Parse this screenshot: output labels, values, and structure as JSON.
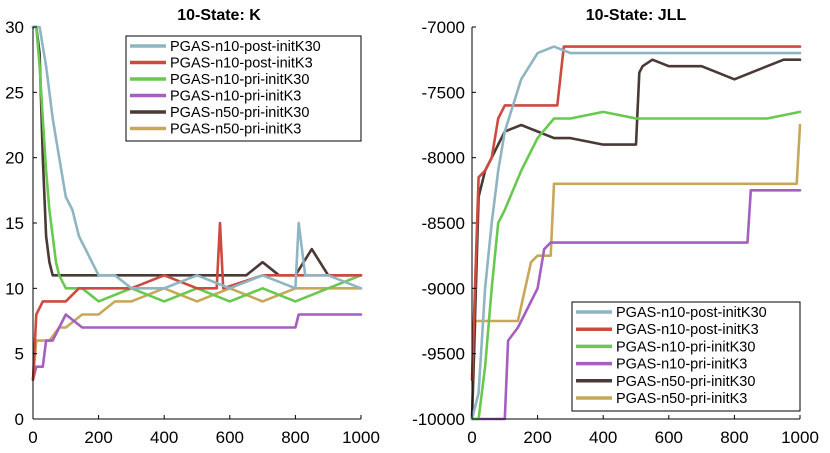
{
  "chart_data": [
    {
      "type": "line",
      "title": "10-State: K",
      "xlabel": "",
      "ylabel": "",
      "xlim": [
        0,
        1000
      ],
      "ylim": [
        0,
        30
      ],
      "xticks": [
        0,
        200,
        400,
        600,
        800,
        1000
      ],
      "yticks": [
        0,
        5,
        10,
        15,
        20,
        25,
        30
      ],
      "xtick_labels": [
        "0",
        "200",
        "400",
        "600",
        "800",
        "1000"
      ],
      "ytick_labels": [
        "0",
        "5",
        "10",
        "15",
        "20",
        "25",
        "30"
      ],
      "legend_position": "top-right",
      "series": [
        {
          "name": "PGAS-n10-post-initK30",
          "color": "#8fb5c3",
          "x": [
            0,
            20,
            40,
            60,
            80,
            100,
            120,
            140,
            160,
            180,
            200,
            250,
            300,
            400,
            500,
            600,
            700,
            800,
            810,
            830,
            900,
            1000
          ],
          "y": [
            30,
            30,
            27,
            23,
            20,
            17,
            16,
            14,
            13,
            12,
            11,
            11,
            10,
            10,
            11,
            10,
            11,
            10,
            15,
            11,
            11,
            10
          ]
        },
        {
          "name": "PGAS-n10-post-initK3",
          "color": "#cc4a3f",
          "x": [
            0,
            10,
            30,
            60,
            100,
            140,
            200,
            300,
            400,
            500,
            560,
            570,
            580,
            700,
            800,
            900,
            1000
          ],
          "y": [
            3,
            8,
            9,
            9,
            9,
            10,
            10,
            10,
            11,
            10,
            10,
            15,
            10,
            11,
            11,
            11,
            11
          ]
        },
        {
          "name": "PGAS-n10-pri-initK30",
          "color": "#69c84f",
          "x": [
            0,
            10,
            20,
            30,
            40,
            50,
            60,
            70,
            80,
            100,
            150,
            200,
            300,
            400,
            500,
            600,
            700,
            800,
            900,
            1000
          ],
          "y": [
            30,
            30,
            27,
            23,
            19,
            16,
            14,
            12,
            11,
            10,
            10,
            9,
            10,
            9,
            10,
            9,
            10,
            9,
            10,
            11
          ]
        },
        {
          "name": "PGAS-n10-pri-initK3",
          "color": "#a45fc0",
          "x": [
            0,
            10,
            30,
            40,
            60,
            80,
            100,
            150,
            200,
            300,
            400,
            500,
            600,
            700,
            800,
            810,
            900,
            1000
          ],
          "y": [
            3,
            4,
            4,
            6,
            6,
            7,
            8,
            7,
            7,
            7,
            7,
            7,
            7,
            7,
            7,
            8,
            8,
            8
          ]
        },
        {
          "name": "PGAS-n50-pri-initK30",
          "color": "#4a3a36",
          "x": [
            0,
            10,
            20,
            30,
            40,
            50,
            60,
            80,
            100,
            150,
            200,
            250,
            300,
            350,
            400,
            450,
            500,
            550,
            600,
            650,
            700,
            750,
            800,
            850,
            900,
            950,
            1000
          ],
          "y": [
            30,
            30,
            28,
            20,
            14,
            12,
            11,
            11,
            11,
            11,
            11,
            11,
            11,
            11,
            11,
            11,
            11,
            11,
            11,
            11,
            12,
            11,
            11,
            13,
            11,
            11,
            11
          ]
        },
        {
          "name": "PGAS-n50-pri-initK3",
          "color": "#c7a85a",
          "x": [
            0,
            10,
            30,
            50,
            80,
            100,
            150,
            200,
            250,
            300,
            400,
            500,
            600,
            700,
            800,
            900,
            1000
          ],
          "y": [
            3,
            6,
            6,
            6,
            7,
            7,
            8,
            8,
            9,
            9,
            10,
            9,
            10,
            9,
            10,
            10,
            10
          ]
        }
      ]
    },
    {
      "type": "line",
      "title": "10-State: JLL",
      "xlabel": "",
      "ylabel": "",
      "xlim": [
        0,
        1000
      ],
      "ylim": [
        -10000,
        -7000
      ],
      "xticks": [
        0,
        200,
        400,
        600,
        800,
        1000
      ],
      "yticks": [
        -10000,
        -9500,
        -9000,
        -8500,
        -8000,
        -7500,
        -7000
      ],
      "xtick_labels": [
        "0",
        "200",
        "400",
        "600",
        "800",
        "1000"
      ],
      "ytick_labels": [
        "-10000",
        "-9500",
        "-9000",
        "-8500",
        "-8000",
        "-7500",
        "-7000"
      ],
      "legend_position": "bottom-right",
      "series": [
        {
          "name": "PGAS-n10-post-initK30",
          "color": "#8fb5c3",
          "x": [
            0,
            20,
            40,
            60,
            80,
            100,
            150,
            200,
            250,
            300,
            400,
            500,
            600,
            700,
            800,
            900,
            1000
          ],
          "y": [
            -10000,
            -9800,
            -9000,
            -8500,
            -8100,
            -7800,
            -7400,
            -7200,
            -7150,
            -7200,
            -7200,
            -7200,
            -7200,
            -7200,
            -7200,
            -7200,
            -7200
          ]
        },
        {
          "name": "PGAS-n10-post-initK3",
          "color": "#cc4a3f",
          "x": [
            0,
            20,
            40,
            60,
            80,
            100,
            150,
            200,
            260,
            280,
            300,
            400,
            500,
            600,
            700,
            800,
            900,
            1000
          ],
          "y": [
            -9700,
            -8150,
            -8100,
            -8000,
            -7700,
            -7600,
            -7600,
            -7600,
            -7600,
            -7150,
            -7150,
            -7150,
            -7150,
            -7150,
            -7150,
            -7150,
            -7150,
            -7150
          ]
        },
        {
          "name": "PGAS-n10-pri-initK30",
          "color": "#69c84f",
          "x": [
            0,
            20,
            40,
            60,
            80,
            100,
            150,
            200,
            250,
            300,
            400,
            500,
            600,
            700,
            800,
            900,
            1000
          ],
          "y": [
            -10000,
            -10000,
            -9600,
            -9000,
            -8500,
            -8400,
            -8100,
            -7850,
            -7700,
            -7700,
            -7650,
            -7700,
            -7700,
            -7700,
            -7700,
            -7700,
            -7650
          ]
        },
        {
          "name": "PGAS-n10-pri-initK3",
          "color": "#a45fc0",
          "x": [
            0,
            100,
            110,
            140,
            160,
            200,
            220,
            240,
            250,
            300,
            400,
            500,
            600,
            700,
            800,
            840,
            850,
            900,
            1000
          ],
          "y": [
            -10000,
            -10000,
            -9400,
            -9300,
            -9200,
            -9000,
            -8700,
            -8650,
            -8650,
            -8650,
            -8650,
            -8650,
            -8650,
            -8650,
            -8650,
            -8650,
            -8250,
            -8250,
            -8250
          ]
        },
        {
          "name": "PGAS-n50-pri-initK30",
          "color": "#4a3a36",
          "x": [
            0,
            20,
            40,
            60,
            80,
            100,
            150,
            200,
            250,
            300,
            400,
            500,
            510,
            520,
            550,
            600,
            700,
            800,
            900,
            950,
            1000
          ],
          "y": [
            -10000,
            -8300,
            -8100,
            -8000,
            -7900,
            -7800,
            -7750,
            -7800,
            -7850,
            -7850,
            -7900,
            -7900,
            -7350,
            -7300,
            -7250,
            -7300,
            -7300,
            -7400,
            -7300,
            -7250,
            -7250
          ]
        },
        {
          "name": "PGAS-n50-pri-initK3",
          "color": "#c7a85a",
          "x": [
            0,
            10,
            20,
            50,
            100,
            140,
            180,
            200,
            240,
            250,
            300,
            400,
            500,
            600,
            700,
            800,
            900,
            990,
            1000
          ],
          "y": [
            -10000,
            -9250,
            -9250,
            -9250,
            -9250,
            -9250,
            -8800,
            -8750,
            -8750,
            -8200,
            -8200,
            -8200,
            -8200,
            -8200,
            -8200,
            -8200,
            -8200,
            -8200,
            -7750
          ]
        }
      ]
    }
  ]
}
